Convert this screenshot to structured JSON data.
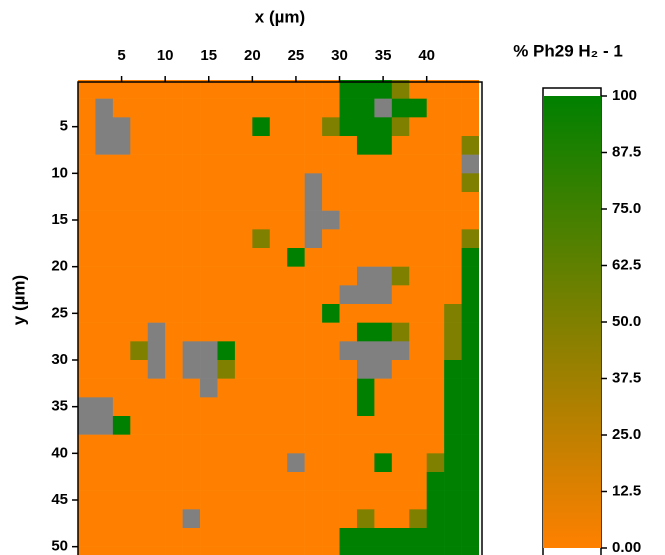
{
  "chart_data": {
    "type": "heatmap",
    "x_label": "x (µm)",
    "y_label": "y (µm)",
    "xlim": [
      0,
      46
    ],
    "ylim": [
      0,
      51
    ],
    "xticks": [
      5,
      10,
      15,
      20,
      25,
      30,
      35,
      40
    ],
    "yticks": [
      5,
      10,
      15,
      20,
      25,
      30,
      35,
      40,
      45,
      50
    ],
    "y_reversed": true,
    "x": [
      1,
      3,
      5,
      7,
      9,
      11,
      13,
      15,
      17,
      19,
      21,
      23,
      25,
      27,
      29,
      31,
      33,
      35,
      37,
      39,
      41,
      43,
      45
    ],
    "y": [
      1,
      3,
      5,
      7,
      9,
      11,
      13,
      15,
      17,
      19,
      21,
      23,
      25,
      27,
      29,
      31,
      33,
      35,
      37,
      39,
      41,
      43,
      45,
      47,
      49,
      51
    ],
    "missing_color": "#808080",
    "z": [
      [
        0,
        0,
        0,
        0,
        0,
        0,
        0,
        0,
        0,
        0,
        0,
        0,
        0,
        0,
        0,
        100,
        100,
        100,
        50,
        0,
        0,
        0,
        0
      ],
      [
        0,
        null,
        0,
        0,
        0,
        0,
        0,
        0,
        0,
        0,
        0,
        0,
        0,
        0,
        0,
        100,
        100,
        null,
        100,
        100,
        0,
        0,
        0
      ],
      [
        0,
        null,
        null,
        0,
        0,
        0,
        0,
        0,
        0,
        0,
        100,
        0,
        0,
        0,
        50,
        100,
        100,
        100,
        50,
        0,
        0,
        0,
        0
      ],
      [
        0,
        null,
        null,
        0,
        0,
        0,
        0,
        0,
        0,
        0,
        0,
        0,
        0,
        0,
        0,
        0,
        100,
        100,
        0,
        0,
        0,
        0,
        50
      ],
      [
        0,
        0,
        0,
        0,
        0,
        0,
        0,
        0,
        0,
        0,
        0,
        0,
        0,
        0,
        0,
        0,
        0,
        0,
        0,
        0,
        0,
        0,
        null
      ],
      [
        0,
        0,
        0,
        0,
        0,
        0,
        0,
        0,
        0,
        0,
        0,
        0,
        0,
        null,
        0,
        0,
        0,
        0,
        0,
        0,
        0,
        0,
        50
      ],
      [
        0,
        0,
        0,
        0,
        0,
        0,
        0,
        0,
        0,
        0,
        0,
        0,
        0,
        null,
        0,
        0,
        0,
        0,
        0,
        0,
        0,
        0,
        0
      ],
      [
        0,
        0,
        0,
        0,
        0,
        0,
        0,
        0,
        0,
        0,
        0,
        0,
        0,
        null,
        null,
        0,
        0,
        0,
        0,
        0,
        0,
        0,
        0
      ],
      [
        0,
        0,
        0,
        0,
        0,
        0,
        0,
        0,
        0,
        0,
        50,
        0,
        0,
        null,
        0,
        0,
        0,
        0,
        0,
        0,
        0,
        0,
        50
      ],
      [
        0,
        0,
        0,
        0,
        0,
        0,
        0,
        0,
        0,
        0,
        0,
        0,
        100,
        0,
        0,
        0,
        0,
        0,
        0,
        0,
        0,
        0,
        100
      ],
      [
        0,
        0,
        0,
        0,
        0,
        0,
        0,
        0,
        0,
        0,
        0,
        0,
        0,
        0,
        0,
        0,
        null,
        null,
        50,
        0,
        0,
        0,
        100
      ],
      [
        0,
        0,
        0,
        0,
        0,
        0,
        0,
        0,
        0,
        0,
        0,
        0,
        0,
        0,
        0,
        null,
        null,
        null,
        0,
        0,
        0,
        0,
        100
      ],
      [
        0,
        0,
        0,
        0,
        0,
        0,
        0,
        0,
        0,
        0,
        0,
        0,
        0,
        0,
        100,
        0,
        0,
        0,
        0,
        0,
        0,
        50,
        100
      ],
      [
        0,
        0,
        0,
        0,
        null,
        0,
        0,
        0,
        0,
        0,
        0,
        0,
        0,
        0,
        0,
        0,
        100,
        100,
        50,
        0,
        0,
        50,
        100
      ],
      [
        0,
        0,
        0,
        50,
        null,
        0,
        null,
        null,
        100,
        0,
        0,
        0,
        0,
        0,
        0,
        null,
        null,
        null,
        null,
        0,
        0,
        50,
        100
      ],
      [
        0,
        0,
        0,
        0,
        null,
        0,
        null,
        null,
        50,
        0,
        0,
        0,
        0,
        0,
        0,
        0,
        null,
        null,
        0,
        0,
        0,
        100,
        100
      ],
      [
        0,
        0,
        0,
        0,
        0,
        0,
        0,
        null,
        0,
        0,
        0,
        0,
        0,
        0,
        0,
        0,
        100,
        0,
        0,
        0,
        0,
        100,
        100
      ],
      [
        null,
        null,
        0,
        0,
        0,
        0,
        0,
        0,
        0,
        0,
        0,
        0,
        0,
        0,
        0,
        0,
        100,
        0,
        0,
        0,
        0,
        100,
        100
      ],
      [
        null,
        null,
        100,
        0,
        0,
        0,
        0,
        0,
        0,
        0,
        0,
        0,
        0,
        0,
        0,
        0,
        0,
        0,
        0,
        0,
        0,
        100,
        100
      ],
      [
        0,
        0,
        0,
        0,
        0,
        0,
        0,
        0,
        0,
        0,
        0,
        0,
        0,
        0,
        0,
        0,
        0,
        0,
        0,
        0,
        0,
        100,
        100
      ],
      [
        0,
        0,
        0,
        0,
        0,
        0,
        0,
        0,
        0,
        0,
        0,
        0,
        null,
        0,
        0,
        0,
        0,
        100,
        0,
        0,
        50,
        100,
        100
      ],
      [
        0,
        0,
        0,
        0,
        0,
        0,
        0,
        0,
        0,
        0,
        0,
        0,
        0,
        0,
        0,
        0,
        0,
        0,
        0,
        0,
        100,
        100,
        100
      ],
      [
        0,
        0,
        0,
        0,
        0,
        0,
        0,
        0,
        0,
        0,
        0,
        0,
        0,
        0,
        0,
        0,
        0,
        0,
        0,
        0,
        100,
        100,
        100
      ],
      [
        0,
        0,
        0,
        0,
        0,
        0,
        null,
        0,
        0,
        0,
        0,
        0,
        0,
        0,
        0,
        0,
        50,
        0,
        0,
        50,
        100,
        100,
        100
      ],
      [
        0,
        0,
        0,
        0,
        0,
        0,
        0,
        0,
        0,
        0,
        0,
        0,
        0,
        0,
        0,
        100,
        100,
        100,
        100,
        100,
        100,
        100,
        100
      ],
      [
        0,
        0,
        0,
        0,
        0,
        0,
        0,
        0,
        0,
        0,
        0,
        0,
        0,
        0,
        0,
        100,
        100,
        100,
        100,
        100,
        100,
        100,
        100
      ]
    ],
    "colorbar": {
      "title": "% Ph29 H₂ - 1",
      "lim": [
        0,
        100
      ],
      "colors": [
        "#ff8000",
        "#008000"
      ],
      "ticks": [
        {
          "value": 0,
          "label": "0.00"
        },
        12.5,
        {
          "value": 25,
          "label": "25.0"
        },
        37.5,
        {
          "value": 50,
          "label": "50.0"
        },
        62.5,
        {
          "value": 75,
          "label": "75.0"
        },
        87.5,
        100
      ]
    }
  }
}
